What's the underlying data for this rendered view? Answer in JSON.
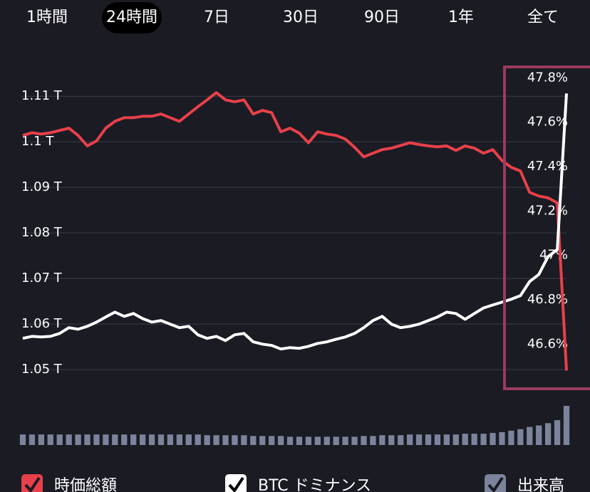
{
  "tabs": {
    "items": [
      "1時間",
      "24時間",
      "7日",
      "30日",
      "90日",
      "1年",
      "全て"
    ],
    "selected": 1
  },
  "chart_data": {
    "type": "line",
    "series": [
      {
        "name": "時価総額",
        "color": "#e8404a",
        "axis": "y",
        "values": [
          1.1014,
          1.102,
          1.1017,
          1.102,
          1.1025,
          1.103,
          1.1014,
          1.0991,
          1.1002,
          1.103,
          1.1045,
          1.1053,
          1.1053,
          1.1056,
          1.1056,
          1.1061,
          1.1053,
          1.1045,
          1.1061,
          1.1077,
          1.1092,
          1.1108,
          1.1092,
          1.1088,
          1.1092,
          1.1061,
          1.1069,
          1.1064,
          1.1022,
          1.103,
          1.1019,
          1.0998,
          1.1022,
          1.1017,
          1.1014,
          1.1006,
          1.0988,
          1.0967,
          1.0975,
          1.0983,
          1.0986,
          1.0992,
          1.0998,
          1.0994,
          1.0991,
          1.0989,
          1.0991,
          1.0981,
          1.0991,
          1.0986,
          1.0975,
          1.0983,
          1.0959,
          1.0944,
          1.0936,
          1.0889,
          1.0881,
          1.0877,
          1.0866,
          1.0498
        ]
      },
      {
        "name": "BTC ドミナンス",
        "color": "#ffffff",
        "axis": "y2",
        "values": [
          46.626,
          46.635,
          46.632,
          46.635,
          46.648,
          46.674,
          46.667,
          46.68,
          46.699,
          46.722,
          46.744,
          46.725,
          46.738,
          46.715,
          46.699,
          46.706,
          46.69,
          46.674,
          46.68,
          46.642,
          46.626,
          46.635,
          46.616,
          46.642,
          46.648,
          46.61,
          46.6,
          46.594,
          46.578,
          46.584,
          46.581,
          46.59,
          46.603,
          46.61,
          46.622,
          46.632,
          46.648,
          46.674,
          46.706,
          46.725,
          46.69,
          46.674,
          46.68,
          46.69,
          46.706,
          46.722,
          46.744,
          46.738,
          46.712,
          46.738,
          46.763,
          46.776,
          46.789,
          46.802,
          46.818,
          46.882,
          46.914,
          46.994,
          47.026,
          47.73
        ]
      },
      {
        "name": "出来高",
        "color": "#7c849c",
        "axis": "volume",
        "values": [
          14,
          14,
          14,
          14,
          14,
          14,
          14,
          14,
          14,
          14,
          14,
          14,
          14,
          14,
          14,
          14,
          14,
          14,
          14,
          14,
          13,
          13,
          13,
          13,
          13,
          12,
          12,
          12,
          12,
          11,
          11,
          11,
          11,
          11,
          11,
          11,
          11,
          12,
          12,
          13,
          13,
          13,
          14,
          14,
          14,
          14,
          14,
          14,
          15,
          15,
          15,
          16,
          17,
          19,
          21,
          24,
          26,
          29,
          33,
          52
        ]
      }
    ],
    "ylim": [
      1.0483,
      1.1155
    ],
    "yticks": [
      {
        "value": 1.05,
        "label": "1.05 T"
      },
      {
        "value": 1.06,
        "label": "1.06 T"
      },
      {
        "value": 1.07,
        "label": "1.07 T"
      },
      {
        "value": 1.08,
        "label": "1.08 T"
      },
      {
        "value": 1.09,
        "label": "1.09 T"
      },
      {
        "value": 1.1,
        "label": "1.1 T"
      },
      {
        "value": 1.11,
        "label": "1.11 T"
      }
    ],
    "y2lim": [
      46.45,
      47.83
    ],
    "y2ticks": [
      {
        "value": 46.6,
        "label": "46.6%"
      },
      {
        "value": 46.8,
        "label": "46.8%"
      },
      {
        "value": 47,
        "label": "47%"
      },
      {
        "value": 47.2,
        "label": "47.2%"
      },
      {
        "value": 47.4,
        "label": "47.4%"
      },
      {
        "value": 47.6,
        "label": "47.6%"
      },
      {
        "value": 47.8,
        "label": "47.8%"
      }
    ],
    "grid": true
  }
}
